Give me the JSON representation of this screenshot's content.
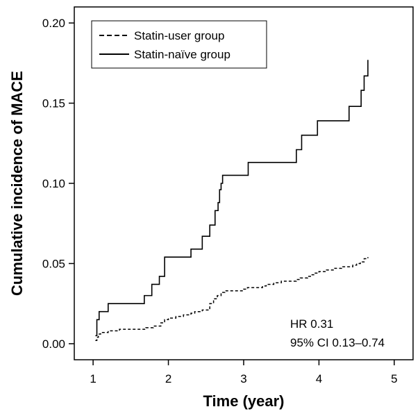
{
  "chart_data": {
    "type": "line",
    "step": true,
    "xlabel": "Time (year)",
    "ylabel": "Cumulative incidence of MACE",
    "xlim": [
      0.75,
      5.25
    ],
    "ylim": [
      -0.01,
      0.21
    ],
    "xticks": [
      1,
      2,
      3,
      4,
      5
    ],
    "yticks": [
      0.0,
      0.05,
      0.1,
      0.15,
      0.2
    ],
    "ytick_labels": [
      "0.00",
      "0.05",
      "0.10",
      "0.15",
      "0.20"
    ],
    "grid": false,
    "legend_position": "top-left",
    "series": [
      {
        "name": "Statin-user group",
        "line_style": "dashed",
        "color": "#000000",
        "x": [
          1.03,
          1.05,
          1.07,
          1.1,
          1.2,
          1.35,
          1.7,
          1.8,
          1.9,
          1.95,
          2.0,
          2.1,
          2.2,
          2.3,
          2.35,
          2.45,
          2.55,
          2.6,
          2.65,
          2.7,
          2.75,
          3.0,
          3.05,
          3.25,
          3.3,
          3.4,
          3.5,
          3.7,
          3.75,
          3.85,
          3.9,
          3.95,
          4.0,
          4.1,
          4.2,
          4.3,
          4.45,
          4.5,
          4.55,
          4.6,
          4.65
        ],
        "y": [
          0.002,
          0.004,
          0.006,
          0.007,
          0.008,
          0.009,
          0.01,
          0.011,
          0.013,
          0.015,
          0.016,
          0.017,
          0.018,
          0.019,
          0.02,
          0.021,
          0.025,
          0.028,
          0.03,
          0.032,
          0.033,
          0.034,
          0.035,
          0.036,
          0.037,
          0.038,
          0.039,
          0.04,
          0.041,
          0.042,
          0.043,
          0.044,
          0.045,
          0.046,
          0.047,
          0.048,
          0.049,
          0.05,
          0.051,
          0.053,
          0.054
        ]
      },
      {
        "name": "Statin-naïve group",
        "line_style": "solid",
        "color": "#000000",
        "x": [
          1.03,
          1.05,
          1.08,
          1.2,
          1.68,
          1.78,
          1.88,
          1.95,
          2.3,
          2.45,
          2.55,
          2.62,
          2.66,
          2.68,
          2.7,
          2.72,
          3.06,
          3.7,
          3.77,
          3.98,
          4.4,
          4.56,
          4.6,
          4.65
        ],
        "y": [
          0.005,
          0.015,
          0.02,
          0.025,
          0.03,
          0.037,
          0.042,
          0.054,
          0.059,
          0.067,
          0.074,
          0.083,
          0.088,
          0.096,
          0.1,
          0.105,
          0.113,
          0.121,
          0.13,
          0.139,
          0.148,
          0.158,
          0.167,
          0.177
        ]
      }
    ],
    "annotations": [
      "HR 0.31",
      "95% CI 0.13–0.74"
    ]
  }
}
